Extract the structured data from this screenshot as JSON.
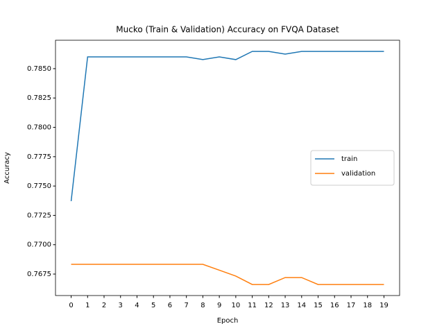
{
  "chart_data": {
    "type": "line",
    "title": "Mucko (Train & Validation) Accuracy on FVQA Dataset",
    "x_label": "Epoch",
    "y_label": "Accuracy",
    "x": [
      0,
      1,
      2,
      3,
      4,
      5,
      6,
      7,
      8,
      9,
      10,
      11,
      12,
      13,
      14,
      15,
      16,
      17,
      18,
      19
    ],
    "series": [
      {
        "name": "train",
        "color": "#1f77b4",
        "values": [
          0.77371,
          0.786,
          0.786,
          0.786,
          0.786,
          0.786,
          0.786,
          0.786,
          0.78577,
          0.786,
          0.78577,
          0.78647,
          0.78647,
          0.78624,
          0.78647,
          0.78647,
          0.78647,
          0.78647,
          0.78647,
          0.78647
        ]
      },
      {
        "name": "validation",
        "color": "#ff7f0e",
        "values": [
          0.76833,
          0.76833,
          0.76833,
          0.76833,
          0.76833,
          0.76833,
          0.76833,
          0.76833,
          0.76833,
          0.76783,
          0.76733,
          0.76661,
          0.76661,
          0.7672,
          0.7672,
          0.76661,
          0.76661,
          0.76661,
          0.76661,
          0.76661
        ]
      }
    ],
    "xlim": [
      -0.95,
      19.95
    ],
    "xticks": [
      0,
      1,
      2,
      3,
      4,
      5,
      6,
      7,
      8,
      9,
      10,
      11,
      12,
      13,
      14,
      15,
      16,
      17,
      18,
      19
    ],
    "ylim": [
      0.76567,
      0.78742
    ],
    "yticks": [
      0.7675,
      0.77,
      0.7725,
      0.775,
      0.7775,
      0.78,
      0.7825,
      0.785
    ],
    "ytick_labels": [
      "0.7675",
      "0.7700",
      "0.7725",
      "0.7750",
      "0.7775",
      "0.7800",
      "0.7825",
      "0.7850"
    ],
    "legend": "center right"
  }
}
